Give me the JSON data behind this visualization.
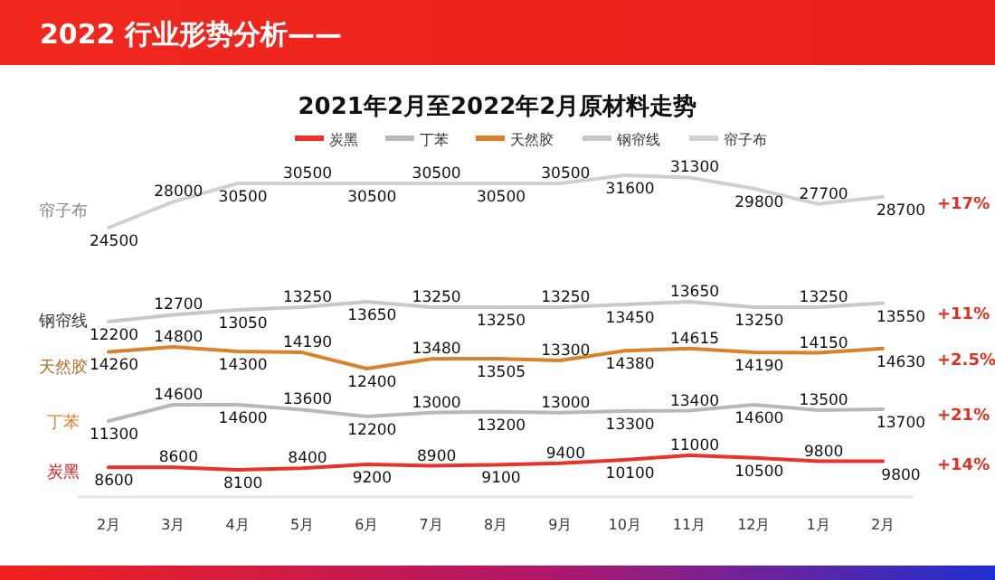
{
  "chart_data": [
    {
      "type": "line",
      "title": "2021年2月至2022年2月原材料走势",
      "annotations": [
        "2022 行业形势分析——",
        "+17%"
      ],
      "categories": [
        "2月",
        "3月",
        "4月",
        "5月",
        "6月",
        "7月",
        "8月",
        "9月",
        "10月",
        "11月",
        "12月",
        "1月",
        "2月"
      ],
      "legend": "top",
      "data_labels": true,
      "tick_labels": false,
      "series": [
        {
          "name": "帘子布",
          "color": "#d0d0d0",
          "values": [
            24500,
            28000,
            30500,
            30500,
            30500,
            30500,
            30500,
            30500,
            31600,
            31300,
            29800,
            27700,
            28700
          ]
        }
      ]
    },
    {
      "type": "line",
      "annotations": [
        "+11%"
      ],
      "categories": [
        "2月",
        "3月",
        "4月",
        "5月",
        "6月",
        "7月",
        "8月",
        "9月",
        "10月",
        "11月",
        "12月",
        "1月",
        "2月"
      ],
      "legend": "top",
      "data_labels": true,
      "tick_labels": false,
      "series": [
        {
          "name": "钢帘线",
          "color": "#c8c8c8",
          "values": [
            12200,
            12700,
            13050,
            13250,
            13650,
            13250,
            13250,
            13250,
            13450,
            13650,
            13250,
            13250,
            13550
          ]
        }
      ]
    },
    {
      "type": "line",
      "annotations": [
        "+2.5%"
      ],
      "categories": [
        "2月",
        "3月",
        "4月",
        "5月",
        "6月",
        "7月",
        "8月",
        "9月",
        "10月",
        "11月",
        "12月",
        "1月",
        "2月"
      ],
      "legend": "top",
      "data_labels": true,
      "tick_labels": false,
      "series": [
        {
          "name": "天然胶",
          "color": "#d9822b",
          "values": [
            14260,
            14800,
            14300,
            14190,
            12400,
            13480,
            13505,
            13300,
            14380,
            14615,
            14190,
            14150,
            14630
          ]
        }
      ]
    },
    {
      "type": "line",
      "annotations": [
        "+21%"
      ],
      "categories": [
        "2月",
        "3月",
        "4月",
        "5月",
        "6月",
        "7月",
        "8月",
        "9月",
        "10月",
        "11月",
        "12月",
        "1月",
        "2月"
      ],
      "legend": "top",
      "data_labels": true,
      "tick_labels": false,
      "series": [
        {
          "name": "丁苯",
          "color": "#b8b8b8",
          "values": [
            11300,
            14600,
            14600,
            13600,
            12200,
            13000,
            13200,
            13000,
            13300,
            13400,
            14600,
            13500,
            13700
          ]
        }
      ]
    },
    {
      "type": "line",
      "annotations": [
        "+14%"
      ],
      "categories": [
        "2月",
        "3月",
        "4月",
        "5月",
        "6月",
        "7月",
        "8月",
        "9月",
        "10月",
        "11月",
        "12月",
        "1月",
        "2月"
      ],
      "legend": "top",
      "data_labels": true,
      "tick_labels": "x",
      "series": [
        {
          "name": "炭黑",
          "color": "#e8322a",
          "values": [
            8600,
            8600,
            8100,
            8400,
            9200,
            8900,
            9100,
            9400,
            10100,
            11000,
            10500,
            9800,
            9800
          ]
        }
      ]
    }
  ]
}
